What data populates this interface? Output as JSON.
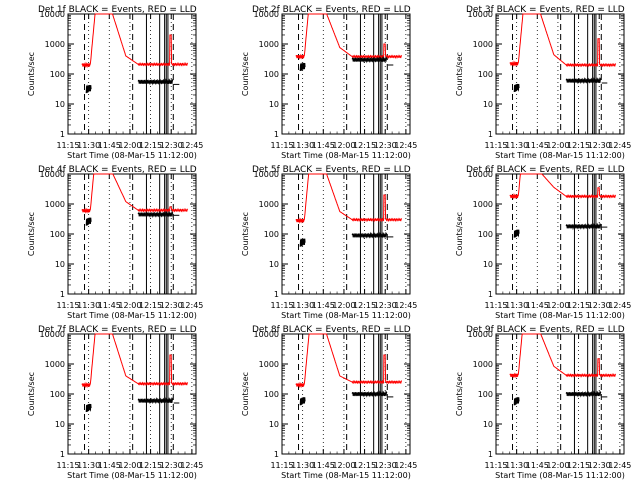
{
  "colors": {
    "background": "#ffffff",
    "axis": "#000000",
    "events": "#000000",
    "lld": "#ff0000"
  },
  "chart_data": [
    {
      "type": "line",
      "title": "Det 1f BLACK = Events, RED = LLD",
      "xlabel": "Start Time (08-Mar-15 11:12:00)",
      "ylabel": "Counts/sec",
      "xlim": [
        11.25,
        12.8
      ],
      "ylim": [
        1,
        10000
      ],
      "yscale": "log",
      "xticks": [
        "11:15",
        "11:30",
        "11:45",
        "12:00",
        "12:15",
        "12:30",
        "12:45"
      ],
      "yticks": [
        "1",
        "10",
        "100",
        "1000",
        "10000"
      ],
      "red_base": 200,
      "red_tail": 210,
      "black_level": 55,
      "black_tail": 45,
      "spike_level": 2000,
      "series": [
        {
          "name": "Events",
          "color": "black"
        },
        {
          "name": "LLD",
          "color": "red"
        }
      ]
    },
    {
      "type": "line",
      "title": "Det 2f BLACK = Events, RED = LLD",
      "xlabel": "Start Time (08-Mar-15 11:12:00)",
      "ylabel": "Counts/sec",
      "xlim": [
        11.25,
        12.8
      ],
      "ylim": [
        1,
        10000
      ],
      "yscale": "log",
      "xticks": [
        "11:15",
        "11:30",
        "11:45",
        "12:00",
        "12:15",
        "12:30",
        "12:45"
      ],
      "yticks": [
        "1",
        "10",
        "100",
        "1000",
        "10000"
      ],
      "red_base": 380,
      "red_tail": 380,
      "black_level": 300,
      "black_tail": 200,
      "spike_level": 1000,
      "series": [
        {
          "name": "Events",
          "color": "black"
        },
        {
          "name": "LLD",
          "color": "red"
        }
      ]
    },
    {
      "type": "line",
      "title": "Det 3f BLACK = Events, RED = LLD",
      "xlabel": "Start Time (08-Mar-15 11:12:00)",
      "ylabel": "Counts/sec",
      "xlim": [
        11.25,
        12.8
      ],
      "ylim": [
        1,
        10000
      ],
      "yscale": "log",
      "xticks": [
        "11:15",
        "11:30",
        "11:45",
        "12:00",
        "12:15",
        "12:30",
        "12:45"
      ],
      "yticks": [
        "1",
        "10",
        "100",
        "1000",
        "10000"
      ],
      "red_base": 220,
      "red_tail": 200,
      "black_level": 60,
      "black_tail": 50,
      "spike_level": 1500,
      "series": [
        {
          "name": "Events",
          "color": "black"
        },
        {
          "name": "LLD",
          "color": "red"
        }
      ]
    },
    {
      "type": "line",
      "title": "Det 4f BLACK = Events, RED = LLD",
      "xlabel": "Start Time (08-Mar-15 11:12:00)",
      "ylabel": "Counts/sec",
      "xlim": [
        11.25,
        12.8
      ],
      "ylim": [
        1,
        10000
      ],
      "yscale": "log",
      "xticks": [
        "11:15",
        "11:30",
        "11:45",
        "12:00",
        "12:15",
        "12:30",
        "12:45"
      ],
      "yticks": [
        "1",
        "10",
        "100",
        "1000",
        "10000"
      ],
      "red_base": 600,
      "red_tail": 620,
      "black_level": 450,
      "black_tail": 420,
      "spike_level": 800,
      "series": [
        {
          "name": "Events",
          "color": "black"
        },
        {
          "name": "LLD",
          "color": "red"
        }
      ]
    },
    {
      "type": "line",
      "title": "Det 5f BLACK = Events, RED = LLD",
      "xlabel": "Start Time (08-Mar-15 11:12:00)",
      "ylabel": "Counts/sec",
      "xlim": [
        11.25,
        12.8
      ],
      "ylim": [
        1,
        10000
      ],
      "yscale": "log",
      "xticks": [
        "11:15",
        "11:30",
        "11:45",
        "12:00",
        "12:15",
        "12:30",
        "12:45"
      ],
      "yticks": [
        "1",
        "10",
        "100",
        "1000",
        "10000"
      ],
      "red_base": 280,
      "red_tail": 300,
      "black_level": 90,
      "black_tail": 80,
      "spike_level": 2000,
      "series": [
        {
          "name": "Events",
          "color": "black"
        },
        {
          "name": "LLD",
          "color": "red"
        }
      ]
    },
    {
      "type": "line",
      "title": "Det 6f BLACK = Events, RED = LLD",
      "xlabel": "Start Time (08-Mar-15 11:12:00)",
      "ylabel": "Counts/sec",
      "xlim": [
        11.25,
        12.8
      ],
      "ylim": [
        1,
        10000
      ],
      "yscale": "log",
      "xticks": [
        "11:15",
        "11:30",
        "11:45",
        "12:00",
        "12:15",
        "12:30",
        "12:45"
      ],
      "yticks": [
        "1",
        "10",
        "100",
        "1000",
        "10000"
      ],
      "red_base": 1800,
      "red_tail": 1800,
      "black_level": 180,
      "black_tail": 170,
      "spike_level": 3500,
      "series": [
        {
          "name": "Events",
          "color": "black"
        },
        {
          "name": "LLD",
          "color": "red"
        }
      ]
    },
    {
      "type": "line",
      "title": "Det 7f BLACK = Events, RED = LLD",
      "xlabel": "Start Time (08-Mar-15 11:12:00)",
      "ylabel": "Counts/sec",
      "xlim": [
        11.25,
        12.8
      ],
      "ylim": [
        1,
        10000
      ],
      "yscale": "log",
      "xticks": [
        "11:15",
        "11:30",
        "11:45",
        "12:00",
        "12:15",
        "12:30",
        "12:45"
      ],
      "yticks": [
        "1",
        "10",
        "100",
        "1000",
        "10000"
      ],
      "red_base": 200,
      "red_tail": 220,
      "black_level": 60,
      "black_tail": 50,
      "spike_level": 2000,
      "series": [
        {
          "name": "Events",
          "color": "black"
        },
        {
          "name": "LLD",
          "color": "red"
        }
      ]
    },
    {
      "type": "line",
      "title": "Det 8f BLACK = Events, RED = LLD",
      "xlabel": "Start Time (08-Mar-15 11:12:00)",
      "ylabel": "Counts/sec",
      "xlim": [
        11.25,
        12.8
      ],
      "ylim": [
        1,
        10000
      ],
      "yscale": "log",
      "xticks": [
        "11:15",
        "11:30",
        "11:45",
        "12:00",
        "12:15",
        "12:30",
        "12:45"
      ],
      "yticks": [
        "1",
        "10",
        "100",
        "1000",
        "10000"
      ],
      "red_base": 200,
      "red_tail": 250,
      "black_level": 100,
      "black_tail": 80,
      "spike_level": 2000,
      "series": [
        {
          "name": "Events",
          "color": "black"
        },
        {
          "name": "LLD",
          "color": "red"
        }
      ]
    },
    {
      "type": "line",
      "title": "Det 9f BLACK = Events, RED = LLD",
      "xlabel": "Start Time (08-Mar-15 11:12:00)",
      "ylabel": "Counts/sec",
      "xlim": [
        11.25,
        12.8
      ],
      "ylim": [
        1,
        10000
      ],
      "yscale": "log",
      "xticks": [
        "11:15",
        "11:30",
        "11:45",
        "12:00",
        "12:15",
        "12:30",
        "12:45"
      ],
      "yticks": [
        "1",
        "10",
        "100",
        "1000",
        "10000"
      ],
      "red_base": 420,
      "red_tail": 420,
      "black_level": 100,
      "black_tail": 80,
      "spike_level": 1500,
      "series": [
        {
          "name": "Events",
          "color": "black"
        },
        {
          "name": "LLD",
          "color": "red"
        }
      ]
    }
  ]
}
